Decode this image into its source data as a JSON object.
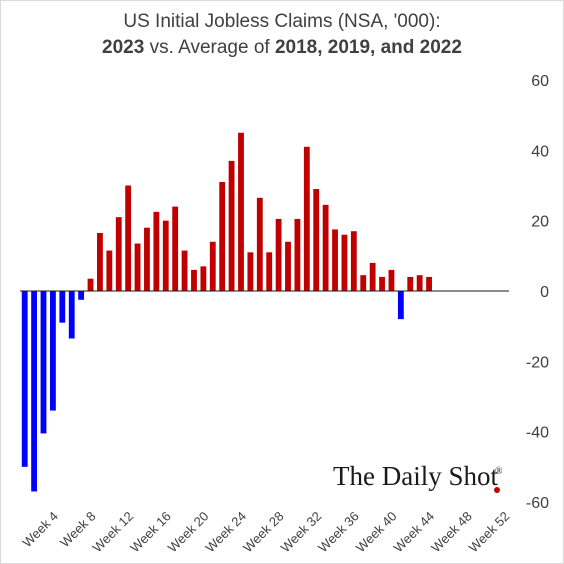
{
  "chart_data": {
    "type": "bar",
    "title_line1": "US Initial Jobless Claims (NSA, '000):",
    "title_line2_parts": [
      {
        "text": "2023",
        "bold": true
      },
      {
        "text": " vs. Average of ",
        "bold": false
      },
      {
        "text": "2018, 2019, and 2022",
        "bold": true
      }
    ],
    "ylim": [
      -60,
      60
    ],
    "yticks": [
      60,
      40,
      20,
      0,
      -20,
      -40,
      -60
    ],
    "xtick_labels": [
      {
        "week": 4,
        "label": "Week 4"
      },
      {
        "week": 8,
        "label": "Week 8"
      },
      {
        "week": 12,
        "label": "Week 12"
      },
      {
        "week": 16,
        "label": "Week 16"
      },
      {
        "week": 20,
        "label": "Week 20"
      },
      {
        "week": 24,
        "label": "Week 24"
      },
      {
        "week": 28,
        "label": "Week 28"
      },
      {
        "week": 32,
        "label": "Week 32"
      },
      {
        "week": 36,
        "label": "Week 36"
      },
      {
        "week": 40,
        "label": "Week 40"
      },
      {
        "week": 44,
        "label": "Week 44"
      },
      {
        "week": 48,
        "label": "Week 48"
      },
      {
        "week": 52,
        "label": "Week 52"
      }
    ],
    "total_weeks": 52,
    "weeks": [
      1,
      2,
      3,
      4,
      5,
      6,
      7,
      8,
      9,
      10,
      11,
      12,
      13,
      14,
      15,
      16,
      17,
      18,
      19,
      20,
      21,
      22,
      23,
      24,
      25,
      26,
      27,
      28,
      29,
      30,
      31,
      32,
      33,
      34,
      35,
      36,
      37,
      38,
      39,
      40,
      41,
      42,
      43,
      44,
      45
    ],
    "values": [
      -50,
      -57,
      -40.5,
      -34,
      -9,
      -13.5,
      -2.5,
      3.5,
      16.5,
      11.5,
      21,
      30,
      13.5,
      18,
      22.5,
      20,
      24,
      11.5,
      6,
      7,
      14,
      31,
      37,
      45,
      11,
      26.5,
      11,
      20.5,
      14,
      20.5,
      41,
      29,
      24.5,
      17.5,
      16,
      17,
      4.5,
      8,
      4,
      6,
      -8,
      4,
      4.5,
      4,
      0
    ],
    "positive_color": "#c00000",
    "negative_color": "#0000ff",
    "grid": false,
    "legend": "none"
  },
  "logo": {
    "text": "The Daily Shot",
    "mark": "®",
    "dot_color": "#c00000"
  }
}
